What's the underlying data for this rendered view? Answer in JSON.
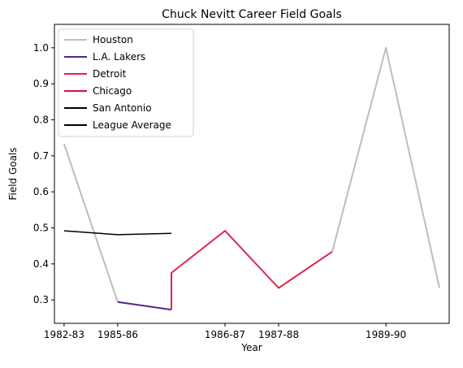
{
  "chart_data": {
    "type": "line",
    "title": "Chuck Nevitt Career Field Goals",
    "xlabel": "Year",
    "ylabel": "Field Goals",
    "x_ticks": [
      "1982-83",
      "1985-86",
      "1986-87",
      "1987-88",
      "1989-90"
    ],
    "xlim": [
      -0.18,
      7.18
    ],
    "ylim": [
      0.235,
      1.065
    ],
    "y_ticks": [
      0.3,
      0.4,
      0.5,
      0.6,
      0.7,
      0.8,
      0.9,
      1.0
    ],
    "legend_position": "top-left",
    "series": [
      {
        "name": "Houston",
        "color": "#bdbdbd",
        "width": 2,
        "points": [
          [
            0,
            0.733
          ],
          [
            1,
            0.294
          ]
        ]
      },
      {
        "name": "Houston",
        "color": "#bdbdbd",
        "width": 2,
        "legend": false,
        "points": [
          [
            5,
            0.434
          ],
          [
            6,
            1.0
          ],
          [
            7,
            0.333
          ]
        ]
      },
      {
        "name": "L.A. Lakers",
        "color": "#552583",
        "width": 2,
        "points": [
          [
            1,
            0.294
          ],
          [
            2,
            0.273
          ]
        ]
      },
      {
        "name": "Detroit",
        "color": "#e0234e",
        "width": 2,
        "points": [
          [
            2,
            0.273
          ],
          [
            2,
            0.375
          ],
          [
            3,
            0.492
          ],
          [
            4,
            0.333
          ],
          [
            5,
            0.434
          ]
        ]
      },
      {
        "name": "Chicago",
        "color": "#ce1141",
        "width": 2,
        "points": []
      },
      {
        "name": "San Antonio",
        "color": "#000000",
        "width": 2,
        "points": []
      },
      {
        "name": "League Average",
        "color": "#000000",
        "width": 1.5,
        "points": [
          [
            0,
            0.492
          ],
          [
            1,
            0.481
          ],
          [
            2,
            0.485
          ]
        ]
      }
    ]
  }
}
